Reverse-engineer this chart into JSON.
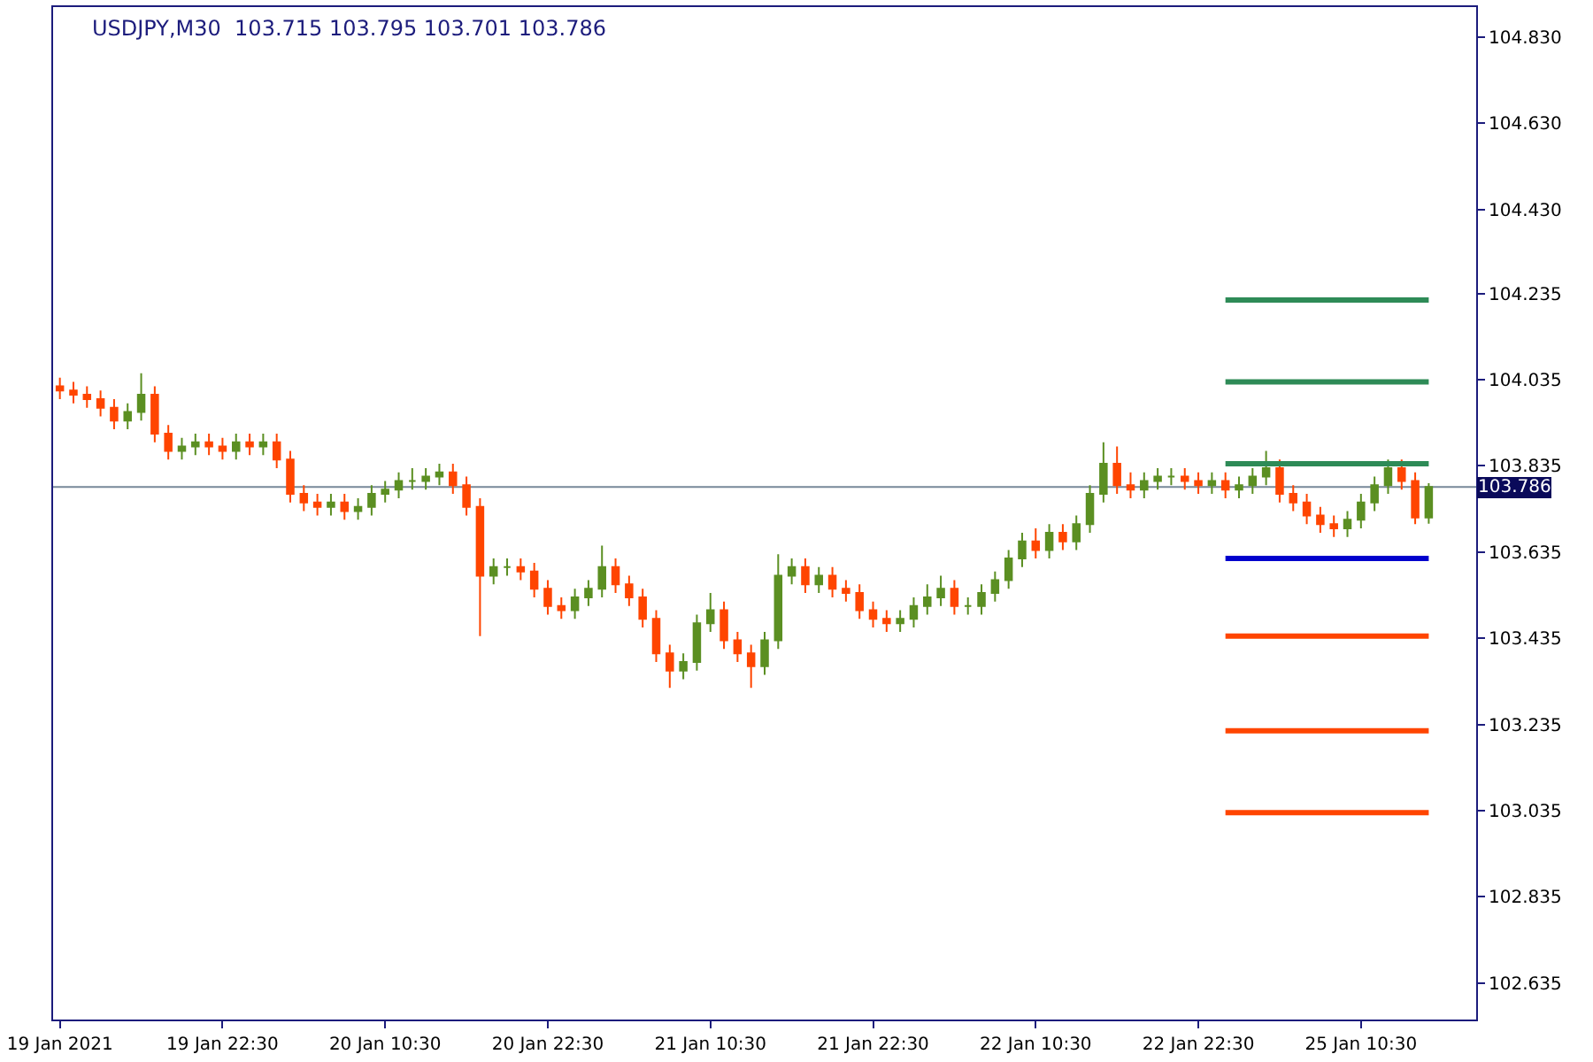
{
  "chart_data": {
    "type": "candlestick",
    "title": "USDJPY,M30  103.715 103.795 103.701 103.786",
    "colors": [
      "#ff4500",
      "#ff4500",
      "#ff4500",
      "#ff4500",
      "#ff4500",
      "#5b8f22",
      "#5b8f22",
      "#ff4500",
      "#ff4500",
      "#5b8f22",
      "#5b8f22",
      "#ff4500",
      "#ff4500",
      "#5b8f22",
      "#ff4500",
      "#5b8f22",
      "#ff4500",
      "#ff4500",
      "#ff4500",
      "#ff4500",
      "#5b8f22",
      "#ff4500",
      "#5b8f22",
      "#5b8f22",
      "#5b8f22",
      "#5b8f22",
      "#5b8f22",
      "#5b8f22",
      "#5b8f22",
      "#ff4500",
      "#ff4500",
      "#ff4500",
      "#5b8f22",
      "#5b8f22",
      "#ff4500",
      "#ff4500",
      "#ff4500",
      "#ff4500",
      "#5b8f22",
      "#5b8f22",
      "#5b8f22",
      "#ff4500",
      "#ff4500",
      "#ff4500",
      "#ff4500",
      "#ff4500",
      "#5b8f22",
      "#5b8f22",
      "#5b8f22",
      "#ff4500",
      "#ff4500",
      "#ff4500",
      "#5b8f22",
      "#5b8f22",
      "#5b8f22",
      "#ff4500",
      "#5b8f22",
      "#ff4500",
      "#ff4500",
      "#ff4500",
      "#ff4500",
      "#ff4500",
      "#5b8f22",
      "#5b8f22",
      "#5b8f22",
      "#5b8f22",
      "#ff4500",
      "#5b8f22",
      "#5b8f22",
      "#5b8f22",
      "#5b8f22",
      "#5b8f22",
      "#ff4500",
      "#5b8f22",
      "#ff4500",
      "#5b8f22",
      "#5b8f22",
      "#5b8f22",
      "#ff4500",
      "#ff4500",
      "#5b8f22",
      "#5b8f22",
      "#5b8f22",
      "#ff4500",
      "#ff4500",
      "#5b8f22",
      "#ff4500",
      "#5b8f22",
      "#5b8f22",
      "#5b8f22",
      "#ff4500",
      "#ff4500",
      "#ff4500",
      "#ff4500",
      "#ff4500",
      "#5b8f22",
      "#5b8f22",
      "#5b8f22",
      "#5b8f22",
      "#ff4500",
      "#ff4500",
      "#5b8f22"
    ],
    "categories": [
      "19 Jan 2021",
      null,
      null,
      null,
      null,
      null,
      null,
      null,
      null,
      null,
      null,
      null,
      "19 Jan 22:30",
      null,
      null,
      null,
      null,
      null,
      null,
      null,
      null,
      null,
      null,
      null,
      "20 Jan 10:30",
      null,
      null,
      null,
      null,
      null,
      null,
      null,
      null,
      null,
      null,
      null,
      "20 Jan 22:30",
      null,
      null,
      null,
      null,
      null,
      null,
      null,
      null,
      null,
      null,
      null,
      "21 Jan 10:30",
      null,
      null,
      null,
      null,
      null,
      null,
      null,
      null,
      null,
      null,
      null,
      "21 Jan 22:30",
      null,
      null,
      null,
      null,
      null,
      null,
      null,
      null,
      null,
      null,
      null,
      "22 Jan 10:30",
      null,
      null,
      null,
      null,
      null,
      null,
      null,
      null,
      null,
      null,
      null,
      "22 Jan 22:30",
      null,
      null,
      null,
      null,
      null,
      null,
      null,
      null,
      null,
      null,
      null,
      "25 Jan 10:30",
      null,
      null,
      null,
      null,
      null
    ],
    "ohlc": [
      [
        104.02,
        104.04,
        103.99,
        104.01
      ],
      [
        104.01,
        104.03,
        103.98,
        104.0
      ],
      [
        104.0,
        104.02,
        103.97,
        103.99
      ],
      [
        103.99,
        104.01,
        103.95,
        103.97
      ],
      [
        103.97,
        103.99,
        103.92,
        103.94
      ],
      [
        103.94,
        103.98,
        103.92,
        103.96
      ],
      [
        103.96,
        104.05,
        103.94,
        104.0
      ],
      [
        104.0,
        104.02,
        103.89,
        103.91
      ],
      [
        103.91,
        103.93,
        103.85,
        103.87
      ],
      [
        103.87,
        103.9,
        103.85,
        103.88
      ],
      [
        103.88,
        103.91,
        103.86,
        103.89
      ],
      [
        103.89,
        103.91,
        103.86,
        103.88
      ],
      [
        103.88,
        103.9,
        103.85,
        103.87
      ],
      [
        103.87,
        103.91,
        103.85,
        103.89
      ],
      [
        103.89,
        103.91,
        103.86,
        103.88
      ],
      [
        103.88,
        103.91,
        103.86,
        103.89
      ],
      [
        103.89,
        103.91,
        103.83,
        103.85
      ],
      [
        103.85,
        103.87,
        103.75,
        103.77
      ],
      [
        103.77,
        103.79,
        103.73,
        103.75
      ],
      [
        103.75,
        103.77,
        103.72,
        103.74
      ],
      [
        103.74,
        103.77,
        103.72,
        103.75
      ],
      [
        103.75,
        103.77,
        103.71,
        103.73
      ],
      [
        103.73,
        103.76,
        103.71,
        103.74
      ],
      [
        103.74,
        103.79,
        103.72,
        103.77
      ],
      [
        103.77,
        103.8,
        103.75,
        103.78
      ],
      [
        103.78,
        103.82,
        103.76,
        103.8
      ],
      [
        103.8,
        103.83,
        103.78,
        103.8
      ],
      [
        103.8,
        103.83,
        103.78,
        103.81
      ],
      [
        103.81,
        103.84,
        103.79,
        103.82
      ],
      [
        103.82,
        103.84,
        103.77,
        103.79
      ],
      [
        103.79,
        103.81,
        103.72,
        103.74
      ],
      [
        103.74,
        103.76,
        103.44,
        103.58
      ],
      [
        103.58,
        103.62,
        103.56,
        103.6
      ],
      [
        103.6,
        103.62,
        103.58,
        103.6
      ],
      [
        103.6,
        103.62,
        103.57,
        103.59
      ],
      [
        103.59,
        103.61,
        103.53,
        103.55
      ],
      [
        103.55,
        103.57,
        103.49,
        103.51
      ],
      [
        103.51,
        103.53,
        103.48,
        103.5
      ],
      [
        103.5,
        103.55,
        103.48,
        103.53
      ],
      [
        103.53,
        103.57,
        103.51,
        103.55
      ],
      [
        103.55,
        103.65,
        103.53,
        103.6
      ],
      [
        103.6,
        103.62,
        103.54,
        103.56
      ],
      [
        103.56,
        103.58,
        103.51,
        103.53
      ],
      [
        103.53,
        103.55,
        103.46,
        103.48
      ],
      [
        103.48,
        103.5,
        103.38,
        103.4
      ],
      [
        103.4,
        103.42,
        103.32,
        103.36
      ],
      [
        103.36,
        103.4,
        103.34,
        103.38
      ],
      [
        103.38,
        103.49,
        103.36,
        103.47
      ],
      [
        103.47,
        103.54,
        103.45,
        103.5
      ],
      [
        103.5,
        103.52,
        103.41,
        103.43
      ],
      [
        103.43,
        103.45,
        103.38,
        103.4
      ],
      [
        103.4,
        103.42,
        103.32,
        103.37
      ],
      [
        103.37,
        103.45,
        103.35,
        103.43
      ],
      [
        103.43,
        103.63,
        103.41,
        103.58
      ],
      [
        103.58,
        103.62,
        103.56,
        103.6
      ],
      [
        103.6,
        103.62,
        103.54,
        103.56
      ],
      [
        103.56,
        103.6,
        103.54,
        103.58
      ],
      [
        103.58,
        103.6,
        103.53,
        103.55
      ],
      [
        103.55,
        103.57,
        103.52,
        103.54
      ],
      [
        103.54,
        103.56,
        103.48,
        103.5
      ],
      [
        103.5,
        103.52,
        103.46,
        103.48
      ],
      [
        103.48,
        103.5,
        103.45,
        103.47
      ],
      [
        103.47,
        103.5,
        103.45,
        103.48
      ],
      [
        103.48,
        103.53,
        103.46,
        103.51
      ],
      [
        103.51,
        103.56,
        103.49,
        103.53
      ],
      [
        103.53,
        103.58,
        103.51,
        103.55
      ],
      [
        103.55,
        103.57,
        103.49,
        103.51
      ],
      [
        103.51,
        103.53,
        103.49,
        103.51
      ],
      [
        103.51,
        103.56,
        103.49,
        103.54
      ],
      [
        103.54,
        103.59,
        103.52,
        103.57
      ],
      [
        103.57,
        103.64,
        103.55,
        103.62
      ],
      [
        103.62,
        103.68,
        103.6,
        103.66
      ],
      [
        103.66,
        103.69,
        103.62,
        103.64
      ],
      [
        103.64,
        103.7,
        103.62,
        103.68
      ],
      [
        103.68,
        103.7,
        103.64,
        103.66
      ],
      [
        103.66,
        103.72,
        103.64,
        103.7
      ],
      [
        103.7,
        103.79,
        103.68,
        103.77
      ],
      [
        103.77,
        103.89,
        103.75,
        103.84
      ],
      [
        103.84,
        103.88,
        103.77,
        103.79
      ],
      [
        103.79,
        103.82,
        103.76,
        103.78
      ],
      [
        103.78,
        103.82,
        103.76,
        103.8
      ],
      [
        103.8,
        103.83,
        103.78,
        103.81
      ],
      [
        103.81,
        103.83,
        103.79,
        103.81
      ],
      [
        103.81,
        103.83,
        103.78,
        103.8
      ],
      [
        103.8,
        103.82,
        103.77,
        103.79
      ],
      [
        103.79,
        103.82,
        103.77,
        103.8
      ],
      [
        103.8,
        103.82,
        103.76,
        103.78
      ],
      [
        103.78,
        103.81,
        103.76,
        103.79
      ],
      [
        103.79,
        103.83,
        103.77,
        103.81
      ],
      [
        103.81,
        103.87,
        103.79,
        103.83
      ],
      [
        103.83,
        103.85,
        103.75,
        103.77
      ],
      [
        103.77,
        103.79,
        103.73,
        103.75
      ],
      [
        103.75,
        103.77,
        103.7,
        103.72
      ],
      [
        103.72,
        103.74,
        103.68,
        103.7
      ],
      [
        103.7,
        103.72,
        103.67,
        103.69
      ],
      [
        103.69,
        103.73,
        103.67,
        103.71
      ],
      [
        103.71,
        103.77,
        103.69,
        103.75
      ],
      [
        103.75,
        103.81,
        103.73,
        103.79
      ],
      [
        103.79,
        103.85,
        103.77,
        103.83
      ],
      [
        103.83,
        103.85,
        103.78,
        103.8
      ],
      [
        103.8,
        103.82,
        103.7,
        103.715
      ],
      [
        103.715,
        103.795,
        103.701,
        103.786
      ]
    ],
    "series": [
      {
        "type": "line",
        "color": "#2e8b57",
        "values": [
          null,
          null,
          null,
          null,
          null,
          null,
          null,
          null,
          null,
          null,
          null,
          null,
          null,
          null,
          null,
          null,
          null,
          null,
          null,
          null,
          null,
          null,
          null,
          null,
          null,
          null,
          null,
          null,
          null,
          null,
          null,
          null,
          null,
          null,
          null,
          null,
          null,
          null,
          null,
          null,
          null,
          null,
          null,
          null,
          null,
          null,
          null,
          null,
          null,
          null,
          null,
          null,
          null,
          null,
          null,
          null,
          null,
          null,
          null,
          null,
          null,
          null,
          null,
          null,
          null,
          null,
          null,
          null,
          null,
          null,
          null,
          null,
          null,
          null,
          null,
          null,
          null,
          null,
          null,
          null,
          null,
          null,
          null,
          null,
          null,
          null,
          104.22,
          104.22,
          104.22,
          104.22,
          104.22,
          104.22,
          104.22,
          104.22,
          104.22,
          104.22,
          104.22,
          104.22,
          104.22,
          104.22,
          104.22,
          104.22
        ]
      },
      {
        "type": "line",
        "color": "#2e8b57",
        "values": [
          null,
          null,
          null,
          null,
          null,
          null,
          null,
          null,
          null,
          null,
          null,
          null,
          null,
          null,
          null,
          null,
          null,
          null,
          null,
          null,
          null,
          null,
          null,
          null,
          null,
          null,
          null,
          null,
          null,
          null,
          null,
          null,
          null,
          null,
          null,
          null,
          null,
          null,
          null,
          null,
          null,
          null,
          null,
          null,
          null,
          null,
          null,
          null,
          null,
          null,
          null,
          null,
          null,
          null,
          null,
          null,
          null,
          null,
          null,
          null,
          null,
          null,
          null,
          null,
          null,
          null,
          null,
          null,
          null,
          null,
          null,
          null,
          null,
          null,
          null,
          null,
          null,
          null,
          null,
          null,
          null,
          null,
          null,
          null,
          null,
          null,
          104.03,
          104.03,
          104.03,
          104.03,
          104.03,
          104.03,
          104.03,
          104.03,
          104.03,
          104.03,
          104.03,
          104.03,
          104.03,
          104.03,
          104.03,
          104.03
        ]
      },
      {
        "type": "line",
        "color": "#2e8b57",
        "values": [
          null,
          null,
          null,
          null,
          null,
          null,
          null,
          null,
          null,
          null,
          null,
          null,
          null,
          null,
          null,
          null,
          null,
          null,
          null,
          null,
          null,
          null,
          null,
          null,
          null,
          null,
          null,
          null,
          null,
          null,
          null,
          null,
          null,
          null,
          null,
          null,
          null,
          null,
          null,
          null,
          null,
          null,
          null,
          null,
          null,
          null,
          null,
          null,
          null,
          null,
          null,
          null,
          null,
          null,
          null,
          null,
          null,
          null,
          null,
          null,
          null,
          null,
          null,
          null,
          null,
          null,
          null,
          null,
          null,
          null,
          null,
          null,
          null,
          null,
          null,
          null,
          null,
          null,
          null,
          null,
          null,
          null,
          null,
          null,
          null,
          null,
          103.84,
          103.84,
          103.84,
          103.84,
          103.84,
          103.84,
          103.84,
          103.84,
          103.84,
          103.84,
          103.84,
          103.84,
          103.84,
          103.84,
          103.84,
          103.84
        ]
      },
      {
        "type": "line",
        "color": "#0000cd",
        "values": [
          null,
          null,
          null,
          null,
          null,
          null,
          null,
          null,
          null,
          null,
          null,
          null,
          null,
          null,
          null,
          null,
          null,
          null,
          null,
          null,
          null,
          null,
          null,
          null,
          null,
          null,
          null,
          null,
          null,
          null,
          null,
          null,
          null,
          null,
          null,
          null,
          null,
          null,
          null,
          null,
          null,
          null,
          null,
          null,
          null,
          null,
          null,
          null,
          null,
          null,
          null,
          null,
          null,
          null,
          null,
          null,
          null,
          null,
          null,
          null,
          null,
          null,
          null,
          null,
          null,
          null,
          null,
          null,
          null,
          null,
          null,
          null,
          null,
          null,
          null,
          null,
          null,
          null,
          null,
          null,
          null,
          null,
          null,
          null,
          null,
          null,
          103.62,
          103.62,
          103.62,
          103.62,
          103.62,
          103.62,
          103.62,
          103.62,
          103.62,
          103.62,
          103.62,
          103.62,
          103.62,
          103.62,
          103.62,
          103.62
        ]
      },
      {
        "type": "line",
        "color": "#ff4500",
        "values": [
          null,
          null,
          null,
          null,
          null,
          null,
          null,
          null,
          null,
          null,
          null,
          null,
          null,
          null,
          null,
          null,
          null,
          null,
          null,
          null,
          null,
          null,
          null,
          null,
          null,
          null,
          null,
          null,
          null,
          null,
          null,
          null,
          null,
          null,
          null,
          null,
          null,
          null,
          null,
          null,
          null,
          null,
          null,
          null,
          null,
          null,
          null,
          null,
          null,
          null,
          null,
          null,
          null,
          null,
          null,
          null,
          null,
          null,
          null,
          null,
          null,
          null,
          null,
          null,
          null,
          null,
          null,
          null,
          null,
          null,
          null,
          null,
          null,
          null,
          null,
          null,
          null,
          null,
          null,
          null,
          null,
          null,
          null,
          null,
          null,
          null,
          103.44,
          103.44,
          103.44,
          103.44,
          103.44,
          103.44,
          103.44,
          103.44,
          103.44,
          103.44,
          103.44,
          103.44,
          103.44,
          103.44,
          103.44,
          103.44
        ]
      },
      {
        "type": "line",
        "color": "#ff4500",
        "values": [
          null,
          null,
          null,
          null,
          null,
          null,
          null,
          null,
          null,
          null,
          null,
          null,
          null,
          null,
          null,
          null,
          null,
          null,
          null,
          null,
          null,
          null,
          null,
          null,
          null,
          null,
          null,
          null,
          null,
          null,
          null,
          null,
          null,
          null,
          null,
          null,
          null,
          null,
          null,
          null,
          null,
          null,
          null,
          null,
          null,
          null,
          null,
          null,
          null,
          null,
          null,
          null,
          null,
          null,
          null,
          null,
          null,
          null,
          null,
          null,
          null,
          null,
          null,
          null,
          null,
          null,
          null,
          null,
          null,
          null,
          null,
          null,
          null,
          null,
          null,
          null,
          null,
          null,
          null,
          null,
          null,
          null,
          null,
          null,
          null,
          null,
          103.22,
          103.22,
          103.22,
          103.22,
          103.22,
          103.22,
          103.22,
          103.22,
          103.22,
          103.22,
          103.22,
          103.22,
          103.22,
          103.22,
          103.22,
          103.22
        ]
      },
      {
        "type": "line",
        "color": "#ff4500",
        "values": [
          null,
          null,
          null,
          null,
          null,
          null,
          null,
          null,
          null,
          null,
          null,
          null,
          null,
          null,
          null,
          null,
          null,
          null,
          null,
          null,
          null,
          null,
          null,
          null,
          null,
          null,
          null,
          null,
          null,
          null,
          null,
          null,
          null,
          null,
          null,
          null,
          null,
          null,
          null,
          null,
          null,
          null,
          null,
          null,
          null,
          null,
          null,
          null,
          null,
          null,
          null,
          null,
          null,
          null,
          null,
          null,
          null,
          null,
          null,
          null,
          null,
          null,
          null,
          null,
          null,
          null,
          null,
          null,
          null,
          null,
          null,
          null,
          null,
          null,
          null,
          null,
          null,
          null,
          null,
          null,
          null,
          null,
          null,
          null,
          null,
          null,
          103.03,
          103.03,
          103.03,
          103.03,
          103.03,
          103.03,
          103.03,
          103.03,
          103.03,
          103.03,
          103.03,
          103.03,
          103.03,
          103.03,
          103.03,
          103.03
        ]
      }
    ],
    "ref_lines": [
      {
        "axis": "y",
        "value": 103.786,
        "label": "103.786",
        "color": "#778899"
      }
    ],
    "ylim": [
      102.55,
      104.9
    ],
    "yticks": [
      {
        "value": 104.83,
        "label": "104.830"
      },
      {
        "value": 104.63,
        "label": "104.630"
      },
      {
        "value": 104.43,
        "label": "104.430"
      },
      {
        "value": 104.235,
        "label": "104.235"
      },
      {
        "value": 104.035,
        "label": "104.035"
      },
      {
        "value": 103.835,
        "label": "103.835"
      },
      {
        "value": 103.635,
        "label": "103.635"
      },
      {
        "value": 103.435,
        "label": "103.435"
      },
      {
        "value": 103.235,
        "label": "103.235"
      },
      {
        "value": 103.035,
        "label": "103.035"
      },
      {
        "value": 102.835,
        "label": "102.835"
      },
      {
        "value": 102.635,
        "label": "102.635"
      }
    ],
    "grid": false
  }
}
